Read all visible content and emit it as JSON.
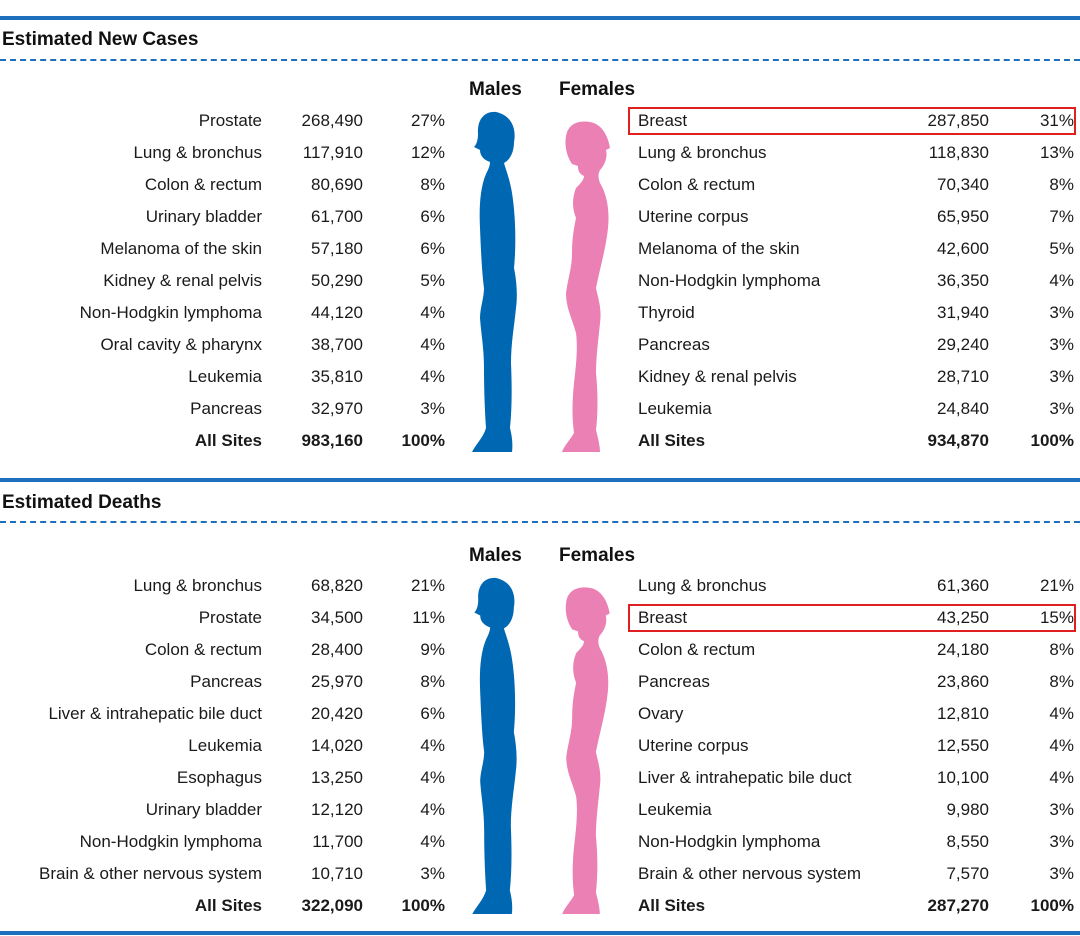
{
  "colors": {
    "rule": "#1f6fbf",
    "male": "#0068b3",
    "female": "#ea80b4",
    "highlight": "#e02020"
  },
  "chart_data": [
    {
      "type": "table",
      "title": "Estimated New Cases",
      "columns": {
        "males": "Males",
        "females": "Females"
      },
      "males": [
        {
          "site": "Prostate",
          "count": "268,490",
          "pct": "27%"
        },
        {
          "site": "Lung & bronchus",
          "count": "117,910",
          "pct": "12%"
        },
        {
          "site": "Colon & rectum",
          "count": "80,690",
          "pct": "8%"
        },
        {
          "site": "Urinary bladder",
          "count": "61,700",
          "pct": "6%"
        },
        {
          "site": "Melanoma of the skin",
          "count": "57,180",
          "pct": "6%"
        },
        {
          "site": "Kidney & renal pelvis",
          "count": "50,290",
          "pct": "5%"
        },
        {
          "site": "Non-Hodgkin lymphoma",
          "count": "44,120",
          "pct": "4%"
        },
        {
          "site": "Oral cavity & pharynx",
          "count": "38,700",
          "pct": "4%"
        },
        {
          "site": "Leukemia",
          "count": "35,810",
          "pct": "4%"
        },
        {
          "site": "Pancreas",
          "count": "32,970",
          "pct": "3%"
        }
      ],
      "males_total": {
        "site": "All Sites",
        "count": "983,160",
        "pct": "100%"
      },
      "females": [
        {
          "site": "Breast",
          "count": "287,850",
          "pct": "31%",
          "highlight": true
        },
        {
          "site": "Lung & bronchus",
          "count": "118,830",
          "pct": "13%"
        },
        {
          "site": "Colon & rectum",
          "count": "70,340",
          "pct": "8%"
        },
        {
          "site": "Uterine corpus",
          "count": "65,950",
          "pct": "7%"
        },
        {
          "site": "Melanoma of the skin",
          "count": "42,600",
          "pct": "5%"
        },
        {
          "site": "Non-Hodgkin lymphoma",
          "count": "36,350",
          "pct": "4%"
        },
        {
          "site": "Thyroid",
          "count": "31,940",
          "pct": "3%"
        },
        {
          "site": "Pancreas",
          "count": "29,240",
          "pct": "3%"
        },
        {
          "site": "Kidney & renal pelvis",
          "count": "28,710",
          "pct": "3%"
        },
        {
          "site": "Leukemia",
          "count": "24,840",
          "pct": "3%"
        }
      ],
      "females_total": {
        "site": "All Sites",
        "count": "934,870",
        "pct": "100%"
      }
    },
    {
      "type": "table",
      "title": "Estimated Deaths",
      "columns": {
        "males": "Males",
        "females": "Females"
      },
      "males": [
        {
          "site": "Lung & bronchus",
          "count": "68,820",
          "pct": "21%"
        },
        {
          "site": "Prostate",
          "count": "34,500",
          "pct": "11%"
        },
        {
          "site": "Colon & rectum",
          "count": "28,400",
          "pct": "9%"
        },
        {
          "site": "Pancreas",
          "count": "25,970",
          "pct": "8%"
        },
        {
          "site": "Liver & intrahepatic bile duct",
          "count": "20,420",
          "pct": "6%"
        },
        {
          "site": "Leukemia",
          "count": "14,020",
          "pct": "4%"
        },
        {
          "site": "Esophagus",
          "count": "13,250",
          "pct": "4%"
        },
        {
          "site": "Urinary bladder",
          "count": "12,120",
          "pct": "4%"
        },
        {
          "site": "Non-Hodgkin lymphoma",
          "count": "11,700",
          "pct": "4%"
        },
        {
          "site": "Brain & other nervous system",
          "count": "10,710",
          "pct": "3%"
        }
      ],
      "males_total": {
        "site": "All Sites",
        "count": "322,090",
        "pct": "100%"
      },
      "females": [
        {
          "site": "Lung & bronchus",
          "count": "61,360",
          "pct": "21%"
        },
        {
          "site": "Breast",
          "count": "43,250",
          "pct": "15%",
          "highlight": true
        },
        {
          "site": "Colon & rectum",
          "count": "24,180",
          "pct": "8%"
        },
        {
          "site": "Pancreas",
          "count": "23,860",
          "pct": "8%"
        },
        {
          "site": "Ovary",
          "count": "12,810",
          "pct": "4%"
        },
        {
          "site": "Uterine corpus",
          "count": "12,550",
          "pct": "4%"
        },
        {
          "site": "Liver & intrahepatic bile duct",
          "count": "10,100",
          "pct": "4%"
        },
        {
          "site": "Leukemia",
          "count": "9,980",
          "pct": "3%"
        },
        {
          "site": "Non-Hodgkin lymphoma",
          "count": "8,550",
          "pct": "3%"
        },
        {
          "site": "Brain & other nervous system",
          "count": "7,570",
          "pct": "3%"
        }
      ],
      "females_total": {
        "site": "All Sites",
        "count": "287,270",
        "pct": "100%"
      }
    }
  ]
}
